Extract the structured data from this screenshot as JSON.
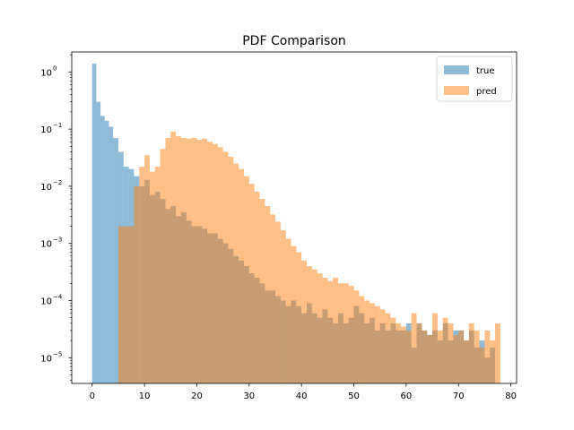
{
  "chart_data": {
    "type": "histogram",
    "title": "PDF Comparison",
    "xlabel": "",
    "ylabel": "",
    "xlim": [
      -3.9,
      81.1
    ],
    "ylim_log10": [
      -5.45,
      0.35
    ],
    "y_scale": "log",
    "grid": false,
    "legend_position": "top-right",
    "x_ticks": [
      0,
      10,
      20,
      30,
      40,
      50,
      60,
      70,
      80
    ],
    "y_ticks": [
      {
        "exp": 0,
        "base": "10",
        "label": "0"
      },
      {
        "exp": -1,
        "base": "10",
        "label": "−1"
      },
      {
        "exp": -2,
        "base": "10",
        "label": "−2"
      },
      {
        "exp": -3,
        "base": "10",
        "label": "−3"
      },
      {
        "exp": -4,
        "base": "10",
        "label": "−4"
      },
      {
        "exp": -5,
        "base": "10",
        "label": "−5"
      }
    ],
    "series": [
      {
        "name": "true",
        "color": "#1f77b4",
        "alpha": 0.5,
        "points": [
          [
            0.0,
            1.4
          ],
          [
            0.8,
            0.3
          ],
          [
            1.6,
            0.17
          ],
          [
            2.4,
            0.14
          ],
          [
            3.2,
            0.11
          ],
          [
            4.0,
            0.07
          ],
          [
            5.0,
            0.04
          ],
          [
            6.0,
            0.022
          ],
          [
            7.0,
            0.02
          ],
          [
            8.0,
            0.015
          ],
          [
            9.0,
            0.01
          ],
          [
            10.0,
            0.013
          ],
          [
            11.0,
            0.007
          ],
          [
            12.0,
            0.008
          ],
          [
            13.0,
            0.006
          ],
          [
            14.0,
            0.004
          ],
          [
            15.0,
            0.0045
          ],
          [
            16.0,
            0.003
          ],
          [
            17.0,
            0.0035
          ],
          [
            18.0,
            0.0025
          ],
          [
            19.0,
            0.002
          ],
          [
            20.0,
            0.002
          ],
          [
            21.0,
            0.0018
          ],
          [
            22.0,
            0.0015
          ],
          [
            23.0,
            0.0015
          ],
          [
            24.0,
            0.0012
          ],
          [
            25.0,
            0.001
          ],
          [
            26.0,
            0.0008
          ],
          [
            27.0,
            0.0006
          ],
          [
            28.0,
            0.0005
          ],
          [
            29.0,
            0.0004
          ],
          [
            30.0,
            0.0003
          ],
          [
            31.0,
            0.00025
          ],
          [
            32.0,
            0.0002
          ],
          [
            33.0,
            0.00015
          ],
          [
            34.0,
            0.00015
          ],
          [
            35.0,
            0.00012
          ],
          [
            36.0,
            0.0001
          ],
          [
            37.0,
            8e-05
          ],
          [
            38.0,
            0.0001
          ],
          [
            39.0,
            8e-05
          ],
          [
            40.0,
            6e-05
          ],
          [
            41.0,
            9e-05
          ],
          [
            42.0,
            6e-05
          ],
          [
            43.0,
            5e-05
          ],
          [
            44.0,
            7e-05
          ],
          [
            45.0,
            5e-05
          ],
          [
            46.0,
            4e-05
          ],
          [
            47.0,
            6e-05
          ],
          [
            48.0,
            4e-05
          ],
          [
            49.0,
            5e-05
          ],
          [
            50.0,
            8e-05
          ],
          [
            51.0,
            6e-05
          ],
          [
            52.0,
            4e-05
          ],
          [
            53.0,
            5e-05
          ],
          [
            54.0,
            3e-05
          ],
          [
            55.0,
            4e-05
          ],
          [
            56.0,
            3e-05
          ],
          [
            57.0,
            4e-05
          ],
          [
            58.0,
            3e-05
          ],
          [
            59.0,
            3e-05
          ],
          [
            60.0,
            4e-05
          ],
          [
            61.0,
            1.5e-05
          ],
          [
            62.0,
            4e-05
          ],
          [
            63.0,
            3e-05
          ],
          [
            64.0,
            2.5e-05
          ],
          [
            65.0,
            3e-05
          ],
          [
            66.0,
            2e-05
          ],
          [
            67.0,
            4e-05
          ],
          [
            68.0,
            2e-05
          ],
          [
            69.0,
            3e-05
          ],
          [
            70.0,
            3e-05
          ],
          [
            71.0,
            2e-05
          ],
          [
            72.0,
            3e-05
          ],
          [
            73.0,
            1.5e-05
          ],
          [
            74.0,
            2e-05
          ],
          [
            75.0,
            1e-05
          ],
          [
            76.0,
            1.5e-05
          ]
        ]
      },
      {
        "name": "pred",
        "color": "#ff7f0e",
        "alpha": 0.5,
        "points": [
          [
            5.0,
            0.002
          ],
          [
            6.0,
            0.002
          ],
          [
            7.0,
            0.002
          ],
          [
            8.0,
            0.01
          ],
          [
            9.0,
            0.022
          ],
          [
            10.0,
            0.035
          ],
          [
            11.0,
            0.018
          ],
          [
            12.0,
            0.022
          ],
          [
            13.0,
            0.045
          ],
          [
            14.0,
            0.07
          ],
          [
            15.0,
            0.09
          ],
          [
            16.0,
            0.075
          ],
          [
            17.0,
            0.07
          ],
          [
            18.0,
            0.068
          ],
          [
            19.0,
            0.07
          ],
          [
            20.0,
            0.065
          ],
          [
            21.0,
            0.068
          ],
          [
            22.0,
            0.06
          ],
          [
            23.0,
            0.055
          ],
          [
            24.0,
            0.048
          ],
          [
            25.0,
            0.04
          ],
          [
            26.0,
            0.033
          ],
          [
            27.0,
            0.025
          ],
          [
            28.0,
            0.02
          ],
          [
            29.0,
            0.015
          ],
          [
            30.0,
            0.011
          ],
          [
            31.0,
            0.008
          ],
          [
            32.0,
            0.006
          ],
          [
            33.0,
            0.0045
          ],
          [
            34.0,
            0.0032
          ],
          [
            35.0,
            0.0024
          ],
          [
            36.0,
            0.0017
          ],
          [
            37.0,
            0.0012
          ],
          [
            38.0,
            0.0009
          ],
          [
            39.0,
            0.0007
          ],
          [
            40.0,
            0.0005
          ],
          [
            41.0,
            0.0004
          ],
          [
            42.0,
            0.00035
          ],
          [
            43.0,
            0.0003
          ],
          [
            44.0,
            0.00025
          ],
          [
            45.0,
            0.00022
          ],
          [
            46.0,
            0.00025
          ],
          [
            47.0,
            0.0002
          ],
          [
            48.0,
            0.0002
          ],
          [
            49.0,
            0.00018
          ],
          [
            50.0,
            0.00015
          ],
          [
            51.0,
            0.00012
          ],
          [
            52.0,
            0.0001
          ],
          [
            53.0,
            9e-05
          ],
          [
            54.0,
            8e-05
          ],
          [
            55.0,
            7e-05
          ],
          [
            56.0,
            6e-05
          ],
          [
            57.0,
            5e-05
          ],
          [
            58.0,
            4e-05
          ],
          [
            59.0,
            3.5e-05
          ],
          [
            60.0,
            3e-05
          ],
          [
            61.0,
            6e-05
          ],
          [
            62.0,
            4e-05
          ],
          [
            63.0,
            3e-05
          ],
          [
            64.0,
            2.5e-05
          ],
          [
            65.0,
            6e-05
          ],
          [
            66.0,
            3e-05
          ],
          [
            67.0,
            5e-05
          ],
          [
            68.0,
            4e-05
          ],
          [
            69.0,
            2.5e-05
          ],
          [
            70.0,
            3e-05
          ],
          [
            71.0,
            2e-05
          ],
          [
            72.0,
            4e-05
          ],
          [
            73.0,
            3e-05
          ],
          [
            74.0,
            1.5e-05
          ],
          [
            75.0,
            3e-05
          ],
          [
            76.0,
            2e-05
          ],
          [
            77.0,
            4e-05
          ]
        ]
      }
    ]
  }
}
